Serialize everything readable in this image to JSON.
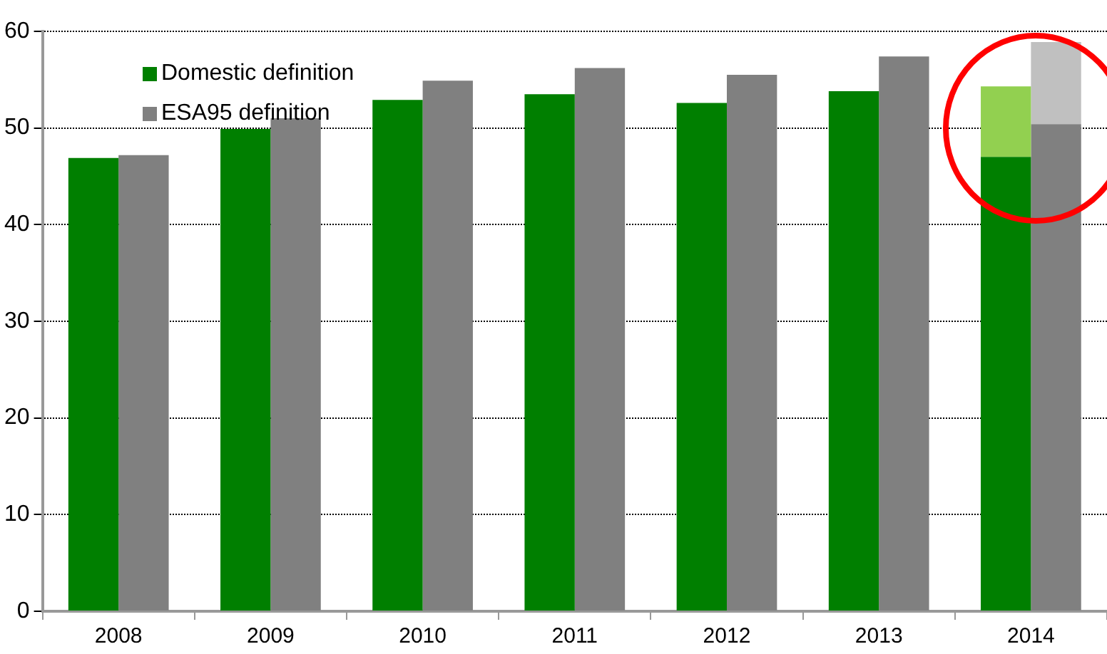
{
  "chart_data": {
    "type": "bar",
    "categories": [
      "2008",
      "2009",
      "2010",
      "2011",
      "2012",
      "2013",
      "2014"
    ],
    "series": [
      {
        "name": "Domestic definition",
        "color": "#007f00",
        "values": [
          46.9,
          49.9,
          52.9,
          53.5,
          52.6,
          53.8,
          47.0
        ]
      },
      {
        "color": "#92d050",
        "base": [
          null,
          null,
          null,
          null,
          null,
          null,
          47.0
        ],
        "values": [
          null,
          null,
          null,
          null,
          null,
          null,
          7.3
        ]
      },
      {
        "name": "ESA95 definition",
        "color": "#808080",
        "values": [
          47.2,
          51.0,
          54.9,
          56.2,
          55.5,
          57.4,
          50.4
        ]
      },
      {
        "color": "#c0c0c0",
        "base": [
          null,
          null,
          null,
          null,
          null,
          null,
          50.4
        ],
        "values": [
          null,
          null,
          null,
          null,
          null,
          null,
          8.5
        ]
      }
    ],
    "ylim": [
      0,
      60
    ],
    "yticks": [
      0,
      10,
      20,
      30,
      40,
      50,
      60
    ],
    "grid": "y",
    "legend": "top left"
  }
}
